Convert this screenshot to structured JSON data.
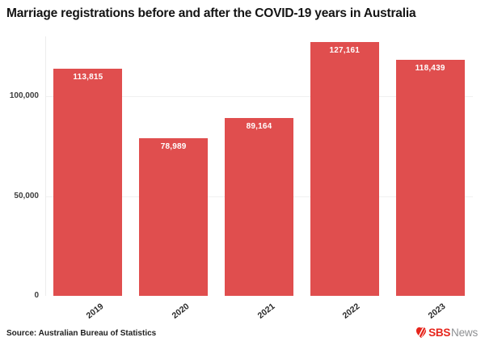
{
  "title": "Marriage registrations before and after the COVID-19 years in Australia",
  "chart_data": {
    "type": "bar",
    "title": "Marriage registrations before and after the COVID-19 years in Australia",
    "categories": [
      "2019",
      "2020",
      "2021",
      "2022",
      "2023"
    ],
    "values": [
      113815,
      78989,
      89164,
      127161,
      118439
    ],
    "value_labels": [
      "113,815",
      "78,989",
      "89,164",
      "127,161",
      "118,439"
    ],
    "xlabel": "",
    "ylabel": "",
    "ylim": [
      0,
      130000
    ],
    "yticks": {
      "values": [
        0,
        50000,
        100000
      ],
      "labels": [
        "0",
        "50,000",
        "100,000"
      ]
    },
    "grid": "horizontal-light",
    "legend": "none",
    "bar_color": "#e04e4e",
    "value_label_color": "#ffffff"
  },
  "footer": {
    "source": "Source: Australian Bureau of Statistics",
    "logo": {
      "icon": "sbs-mitre-icon",
      "sbs": "SBS",
      "news": "News",
      "sbs_color": "#e6251c",
      "news_color": "#8f9193"
    }
  }
}
